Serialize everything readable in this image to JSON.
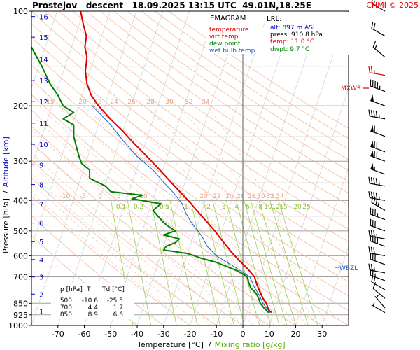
{
  "header": {
    "title": "Prostejov   descent   18.09.2025 13:15 UTC  49.01N,18.25E",
    "copyright": "CHMI © 2025"
  },
  "legend": {
    "heading": "EMAGRAM",
    "items": [
      {
        "label": "temperature",
        "color": "#e00000"
      },
      {
        "label": "virt.temp.",
        "color": "#e00000"
      },
      {
        "label": "dew point",
        "color": "#008000"
      },
      {
        "label": "wet bulb temp.",
        "color": "#2060d0"
      }
    ]
  },
  "lrl": {
    "heading": "LRL:",
    "alt": "alt: 897 m ASL",
    "press": "press: 910.8 hPa",
    "temp": "temp: 11.0 °C",
    "dwpt": "dwpt: 9.7 °C",
    "alt_color": "#0000c0",
    "press_color": "#000000",
    "temp_color": "#e00000",
    "dwpt_color": "#008000"
  },
  "axes": {
    "xlabel": "Temperature [°C]  /",
    "xlabel2": "Mixing ratio [g/kg]",
    "ylabel_left": "Pressure [hPa]  /",
    "ylabel_left2": "Altitude [km]"
  },
  "markers": {
    "mxws": "MXWS",
    "wbzl": "WBZL",
    "mxws_color": "#e00000",
    "wbzl_color": "#2060d0"
  },
  "table": {
    "headers": [
      "p [hPa]",
      "T",
      "Td [°C]"
    ],
    "rows": [
      [
        "500",
        "-10.6",
        "-25.5"
      ],
      [
        "700",
        "4.4",
        "1.7"
      ],
      [
        "850",
        "8.9",
        "6.6"
      ]
    ]
  },
  "chart_data": {
    "type": "line",
    "title": "Prostejov   descent   18.09.2025 13:15 UTC  49.01N,18.25E",
    "xlabel": "Temperature [°C]",
    "ylabel": "Pressure [hPa]",
    "xlim": [
      -80,
      40
    ],
    "ylim": [
      1000,
      100
    ],
    "y_scale": "log",
    "x_ticks": [
      -70,
      -60,
      -50,
      -40,
      -30,
      -20,
      -10,
      0,
      10,
      20,
      30
    ],
    "pressure_ticks": [
      100,
      200,
      300,
      400,
      500,
      600,
      700,
      850,
      925,
      1000
    ],
    "altitude_ticks_km": [
      {
        "km": 1,
        "p": 900
      },
      {
        "km": 2,
        "p": 795
      },
      {
        "km": 3,
        "p": 701
      },
      {
        "km": 4,
        "p": 617
      },
      {
        "km": 5,
        "p": 541
      },
      {
        "km": 6,
        "p": 472
      },
      {
        "km": 7,
        "p": 411
      },
      {
        "km": 8,
        "p": 356
      },
      {
        "km": 9,
        "p": 308
      },
      {
        "km": 10,
        "p": 265
      },
      {
        "km": 11,
        "p": 227
      },
      {
        "km": 12,
        "p": 194
      },
      {
        "km": 13,
        "p": 166
      },
      {
        "km": 14,
        "p": 142
      },
      {
        "km": 15,
        "p": 121
      },
      {
        "km": 16,
        "p": 104
      }
    ],
    "mixing_ratio_labels": [
      "0.1",
      "0.2",
      "0.5",
      "1",
      "2",
      "3",
      "4",
      "6",
      "8",
      "10",
      "12",
      "15",
      "20",
      "25"
    ],
    "mixing_ratio_values": [
      0.1,
      0.2,
      0.5,
      1,
      2,
      3,
      4,
      6,
      8,
      10,
      12,
      15,
      20,
      25
    ],
    "adiabat_labels_upper": [
      "15",
      "20",
      "22",
      "24",
      "26",
      "28",
      "30",
      "32",
      "34"
    ],
    "adiabat_labels_lower": [
      "-10",
      "-5",
      "0",
      "5",
      "10",
      "15",
      "20",
      "22",
      "24",
      "26",
      "28",
      "30",
      "32",
      "34"
    ],
    "series": [
      {
        "name": "temperature",
        "color": "#e00000",
        "points": [
          [
            909,
            11.0
          ],
          [
            900,
            10.2
          ],
          [
            880,
            9.5
          ],
          [
            850,
            8.9
          ],
          [
            820,
            7.6
          ],
          [
            780,
            6.4
          ],
          [
            740,
            5.3
          ],
          [
            700,
            4.4
          ],
          [
            660,
            1.8
          ],
          [
            620,
            -1.5
          ],
          [
            580,
            -4.6
          ],
          [
            540,
            -7.6
          ],
          [
            500,
            -10.6
          ],
          [
            470,
            -13.4
          ],
          [
            440,
            -16.4
          ],
          [
            410,
            -19.6
          ],
          [
            380,
            -23.2
          ],
          [
            350,
            -27.2
          ],
          [
            320,
            -31.4
          ],
          [
            300,
            -34.6
          ],
          [
            280,
            -38.0
          ],
          [
            260,
            -41.8
          ],
          [
            240,
            -45.6
          ],
          [
            220,
            -50.2
          ],
          [
            200,
            -54.6
          ],
          [
            185,
            -57.4
          ],
          [
            170,
            -59.0
          ],
          [
            155,
            -59.6
          ],
          [
            140,
            -59.0
          ],
          [
            130,
            -59.8
          ],
          [
            120,
            -59.2
          ],
          [
            110,
            -60.4
          ],
          [
            100,
            -61.4
          ]
        ]
      },
      {
        "name": "dew point",
        "color": "#008000",
        "points": [
          [
            909,
            9.7
          ],
          [
            880,
            8.0
          ],
          [
            850,
            6.6
          ],
          [
            820,
            6.0
          ],
          [
            790,
            5.0
          ],
          [
            760,
            3.0
          ],
          [
            730,
            2.2
          ],
          [
            700,
            1.7
          ],
          [
            670,
            -2.0
          ],
          [
            650,
            -6.0
          ],
          [
            630,
            -10.0
          ],
          [
            610,
            -16.0
          ],
          [
            590,
            -21.0
          ],
          [
            575,
            -30.0
          ],
          [
            560,
            -29.0
          ],
          [
            545,
            -25.5
          ],
          [
            530,
            -24.0
          ],
          [
            515,
            -30.0
          ],
          [
            500,
            -25.5
          ],
          [
            485,
            -28.0
          ],
          [
            470,
            -30.0
          ],
          [
            450,
            -32.0
          ],
          [
            430,
            -34.0
          ],
          [
            410,
            -31.0
          ],
          [
            395,
            -42.0
          ],
          [
            385,
            -38.0
          ],
          [
            375,
            -50.0
          ],
          [
            360,
            -52.0
          ],
          [
            340,
            -58.0
          ],
          [
            320,
            -58.0
          ],
          [
            305,
            -61.0
          ],
          [
            290,
            -62.0
          ],
          [
            270,
            -63.0
          ],
          [
            250,
            -64.0
          ],
          [
            230,
            -64.0
          ],
          [
            220,
            -68.0
          ],
          [
            210,
            -64.0
          ],
          [
            200,
            -68.0
          ],
          [
            185,
            -70.0
          ],
          [
            170,
            -73.0
          ],
          [
            160,
            -74.5
          ],
          [
            150,
            -76.0
          ],
          [
            140,
            -78.0
          ],
          [
            130,
            -80.0
          ]
        ]
      },
      {
        "name": "wet bulb temp.",
        "color": "#2060d0",
        "points": [
          [
            909,
            10.3
          ],
          [
            850,
            7.6
          ],
          [
            800,
            6.2
          ],
          [
            760,
            4.5
          ],
          [
            700,
            2.6
          ],
          [
            660,
            -2.0
          ],
          [
            630,
            -6.0
          ],
          [
            600,
            -10.0
          ],
          [
            560,
            -13.5
          ],
          [
            520,
            -15.5
          ],
          [
            500,
            -17.0
          ],
          [
            470,
            -19.5
          ],
          [
            440,
            -21.5
          ],
          [
            410,
            -23.0
          ],
          [
            380,
            -26.0
          ],
          [
            350,
            -30.0
          ],
          [
            320,
            -34.0
          ],
          [
            290,
            -40.0
          ],
          [
            260,
            -45.0
          ],
          [
            230,
            -50.0
          ],
          [
            200,
            -57.0
          ]
        ]
      }
    ],
    "wind_pressures": [
      100,
      120,
      140,
      160,
      180,
      200,
      220,
      250,
      280,
      300,
      330,
      360,
      400,
      430,
      460,
      500,
      530,
      560,
      600,
      640,
      680,
      720,
      770,
      820,
      880,
      910
    ],
    "wind_speeds_kt": [
      15,
      20,
      15,
      25,
      45,
      50,
      45,
      65,
      70,
      70,
      55,
      45,
      45,
      35,
      35,
      30,
      35,
      40,
      30,
      30,
      25,
      25,
      20,
      10,
      5,
      5
    ],
    "wind_dirs_deg": [
      300,
      300,
      310,
      280,
      290,
      290,
      280,
      290,
      290,
      290,
      290,
      280,
      280,
      300,
      290,
      290,
      280,
      290,
      280,
      290,
      280,
      290,
      300,
      310,
      320,
      300
    ]
  }
}
